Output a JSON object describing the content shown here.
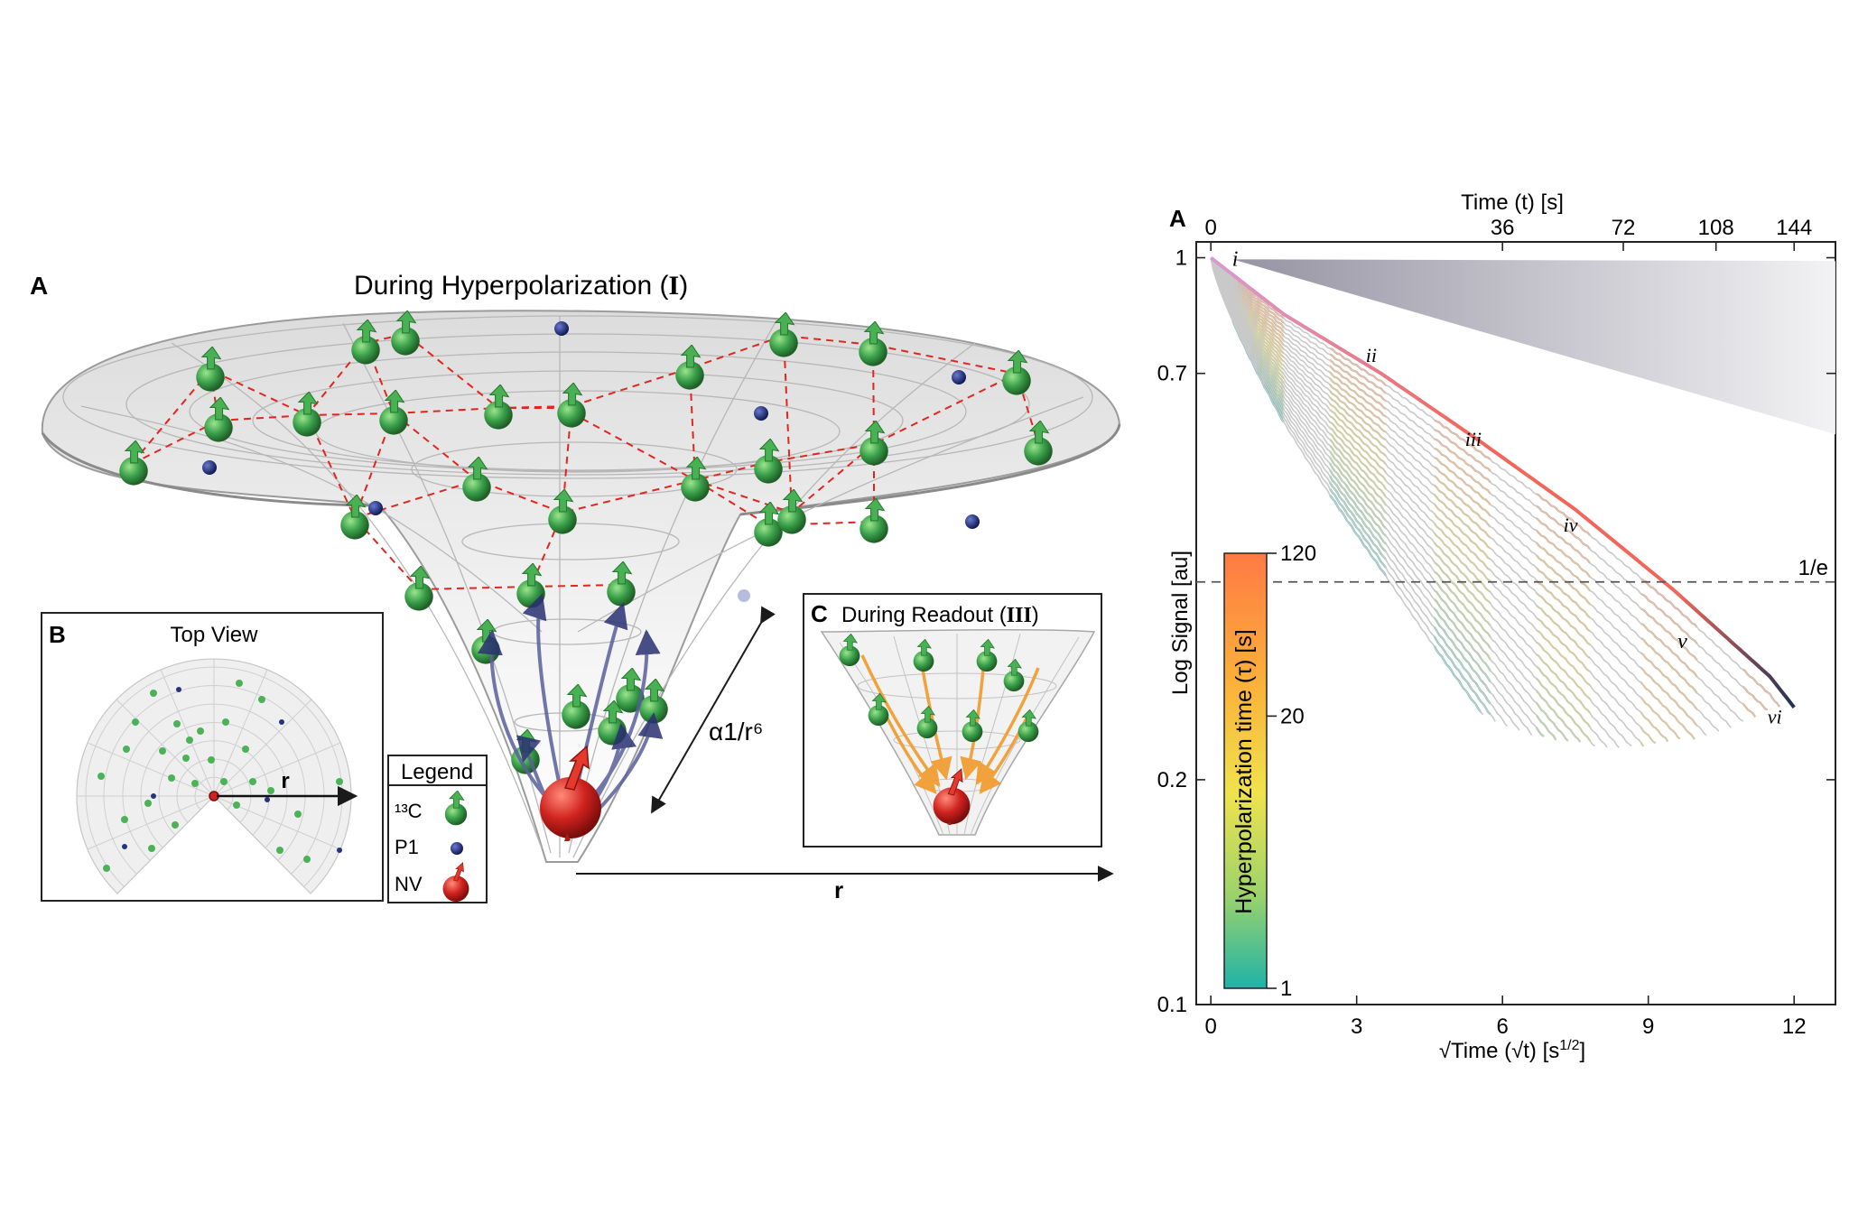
{
  "left_panel": {
    "panel_label": "A",
    "title_prefix": "During Hyperpolarization (",
    "title_roman": "I",
    "title_suffix": ")",
    "scaling_label": "α1/r⁶",
    "radial_axis_label": "r"
  },
  "inset_b": {
    "panel_label": "B",
    "title": "Top View",
    "radius_label": "r"
  },
  "legend": {
    "title": "Legend",
    "items": [
      {
        "label": "¹³C",
        "color": "#3aa04a",
        "icon": "carbon13-spin-icon"
      },
      {
        "label": "P1",
        "color": "#1d2d7a",
        "icon": "p1-center-icon"
      },
      {
        "label": "NV",
        "color": "#d0231f",
        "icon": "nv-center-icon"
      }
    ]
  },
  "inset_c": {
    "panel_label": "C",
    "title_prefix": "During Readout (",
    "title_roman": "III",
    "title_suffix": ")"
  },
  "chart_data": {
    "type": "line",
    "panel_label": "A",
    "title": "",
    "top_xlabel": "Time (t) [s]",
    "top_xticks": [
      0,
      36,
      72,
      108,
      144
    ],
    "xlabel_prefix": "√Time (√t) [s",
    "xlabel_sup": "1/2",
    "xlabel_suffix": "]",
    "xticks": [
      0,
      3,
      6,
      9,
      12
    ],
    "xlim": [
      -0.3,
      12.85
    ],
    "ylabel": "Log Signal [au]",
    "yscale": "log",
    "yticks": [
      1,
      0.7,
      0.2,
      0.1
    ],
    "ylim": [
      0.1,
      1.05
    ],
    "reference_line": {
      "label": "1/e",
      "value": 0.368
    },
    "regime_labels": [
      {
        "label": "i",
        "x": 0.5,
        "y": 0.975
      },
      {
        "label": "ii",
        "x": 3.3,
        "y": 0.725
      },
      {
        "label": "iii",
        "x": 5.4,
        "y": 0.56
      },
      {
        "label": "iv",
        "x": 7.4,
        "y": 0.43
      },
      {
        "label": "v",
        "x": 9.7,
        "y": 0.3
      },
      {
        "label": "vi",
        "x": 11.6,
        "y": 0.238
      }
    ],
    "envelope": {
      "x": [
        0,
        1.5,
        3.5,
        5.5,
        7.5,
        9.5,
        11.5,
        12
      ],
      "y": [
        1,
        0.84,
        0.7,
        0.57,
        0.46,
        0.36,
        0.275,
        0.25
      ]
    },
    "band_starts": [
      0.45,
      2.45,
      4.6,
      6.7,
      8.85,
      10.95
    ],
    "band_ends": [
      1.5,
      3.6,
      5.75,
      7.85,
      10.0,
      12.0
    ],
    "series_count": 26,
    "colorbar": {
      "label": "Hyperpolarization time (τ) [s]",
      "ticks": [
        120,
        20,
        1
      ],
      "colors": [
        "#ff7a45",
        "#fbb13a",
        "#f0e24d",
        "#9fd36a",
        "#1fb3a8"
      ]
    },
    "colors": {
      "gray_curve": "#c9c9c9",
      "envelope_early": "#d89bd1",
      "envelope_mid": "#f2665a",
      "envelope_late": "#1f3352",
      "reference": "#555555"
    }
  }
}
